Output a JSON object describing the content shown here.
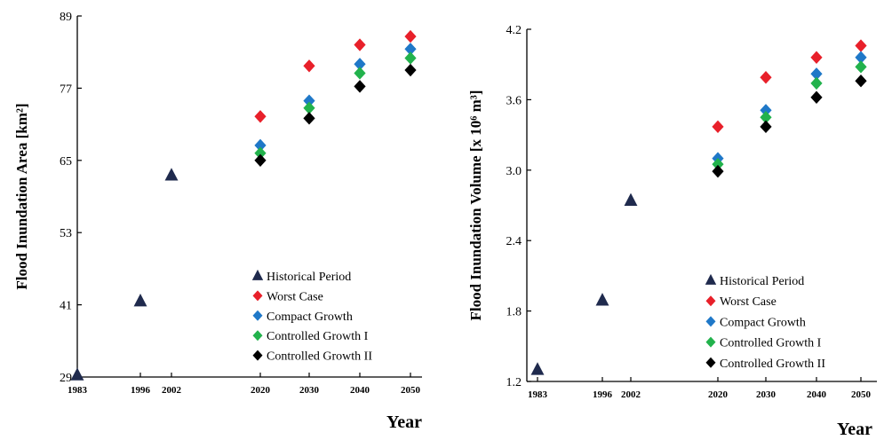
{
  "chart_data": [
    {
      "type": "scatter",
      "xlabel": "Year",
      "ylabel": "Flood Inundation Area [km²]",
      "x_ticks": [
        1983,
        1996,
        2002,
        2020,
        2030,
        2040,
        2050
      ],
      "y_ticks": [
        29,
        41,
        53,
        65,
        77,
        89
      ],
      "ylim": [
        29,
        89
      ],
      "xlim": [
        1983,
        2050
      ],
      "grid": false,
      "legend_position": "bottom-right",
      "series": [
        {
          "name": "Historical Period",
          "marker": "triangle",
          "color": "#1f2a4d",
          "points": [
            [
              1983,
              29.3
            ],
            [
              1996,
              41.6
            ],
            [
              2002,
              62.5
            ]
          ]
        },
        {
          "name": "Worst Case",
          "marker": "diamond",
          "color": "#e8202a",
          "points": [
            [
              2020,
              72.3
            ],
            [
              2030,
              80.7
            ],
            [
              2040,
              84.2
            ],
            [
              2050,
              85.6
            ]
          ]
        },
        {
          "name": "Compact Growth",
          "marker": "diamond",
          "color": "#1f78c8",
          "points": [
            [
              2020,
              67.5
            ],
            [
              2030,
              74.9
            ],
            [
              2040,
              81.0
            ],
            [
              2050,
              83.5
            ]
          ]
        },
        {
          "name": "Controlled Growth I",
          "marker": "diamond",
          "color": "#22b24c",
          "points": [
            [
              2020,
              66.2
            ],
            [
              2030,
              73.7
            ],
            [
              2040,
              79.5
            ],
            [
              2050,
              82.0
            ]
          ]
        },
        {
          "name": "Controlled Growth II",
          "marker": "diamond",
          "color": "#000000",
          "points": [
            [
              2020,
              65.0
            ],
            [
              2030,
              72.0
            ],
            [
              2040,
              77.3
            ],
            [
              2050,
              80.0
            ]
          ]
        }
      ]
    },
    {
      "type": "scatter",
      "xlabel": "Year",
      "ylabel": "Flood Inundation Volume [x 10⁶ m³]",
      "x_ticks": [
        1983,
        1996,
        2002,
        2020,
        2030,
        2040,
        2050
      ],
      "y_ticks": [
        "1.2",
        "1.8",
        "2.4",
        "3.0",
        "3.6",
        "4.2"
      ],
      "ylim": [
        1.2,
        4.2
      ],
      "xlim": [
        1983,
        2050
      ],
      "grid": false,
      "legend_position": "bottom-right",
      "series": [
        {
          "name": "Historical Period",
          "marker": "triangle",
          "color": "#1f2a4d",
          "points": [
            [
              1983,
              1.3
            ],
            [
              1996,
              1.89
            ],
            [
              2002,
              2.74
            ]
          ]
        },
        {
          "name": "Worst Case",
          "marker": "diamond",
          "color": "#e8202a",
          "points": [
            [
              2020,
              3.37
            ],
            [
              2030,
              3.79
            ],
            [
              2040,
              3.96
            ],
            [
              2050,
              4.06
            ]
          ]
        },
        {
          "name": "Compact Growth",
          "marker": "diamond",
          "color": "#1f78c8",
          "points": [
            [
              2020,
              3.1
            ],
            [
              2030,
              3.51
            ],
            [
              2040,
              3.82
            ],
            [
              2050,
              3.96
            ]
          ]
        },
        {
          "name": "Controlled Growth I",
          "marker": "diamond",
          "color": "#22b24c",
          "points": [
            [
              2020,
              3.05
            ],
            [
              2030,
              3.45
            ],
            [
              2040,
              3.74
            ],
            [
              2050,
              3.88
            ]
          ]
        },
        {
          "name": "Controlled Growth II",
          "marker": "diamond",
          "color": "#000000",
          "points": [
            [
              2020,
              2.99
            ],
            [
              2030,
              3.37
            ],
            [
              2040,
              3.62
            ],
            [
              2050,
              3.76
            ]
          ]
        }
      ]
    }
  ]
}
